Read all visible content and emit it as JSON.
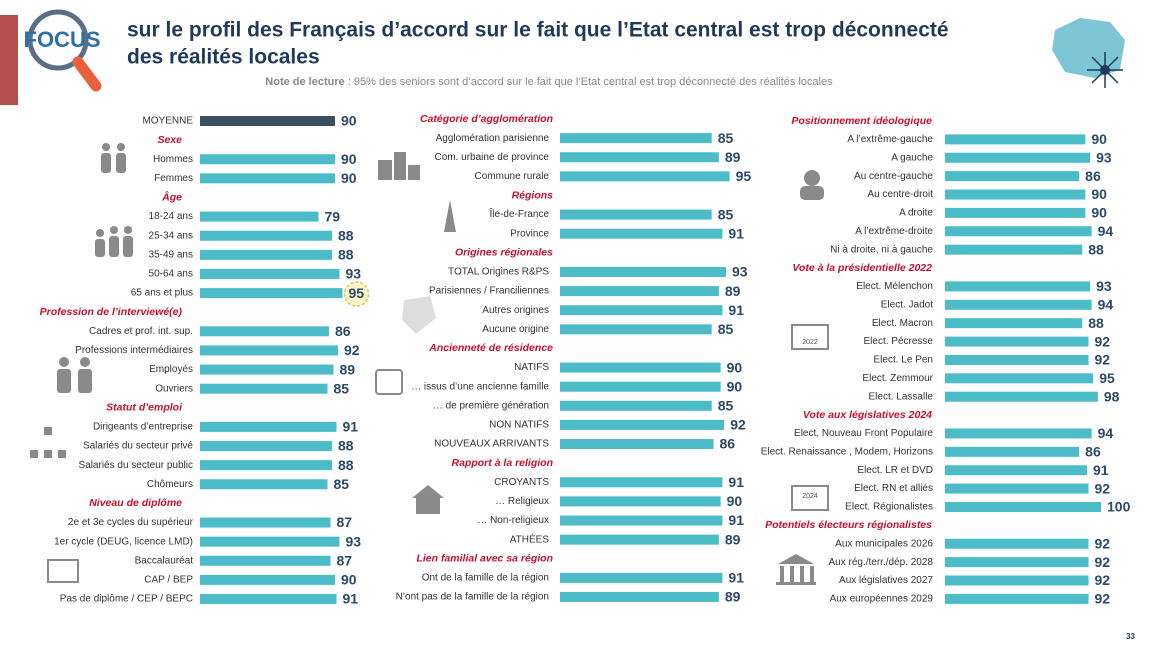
{
  "header": {
    "logo": "FOCUS",
    "title_lines": [
      "sur le profil des Français d’accord sur le fait que l’Etat central est trop déconnecté",
      "des réalités locales"
    ],
    "note": {
      "label": "Note de lecture",
      "text": ": 95% des seniors sont d’accord sur le fait que l’Etat central est trop déconnecté des réalités locales"
    }
  },
  "bar_color": "#4bbcc8",
  "columns": [
    {
      "items": [
        {
          "label": "MOYENNE",
          "value": 90,
          "color": "#3b4f63"
        },
        {
          "heading": "Sexe"
        },
        {
          "label": "Hommes",
          "value": 90
        },
        {
          "label": "Femmes",
          "value": 90
        },
        {
          "heading": "Âge"
        },
        {
          "label": "18-24 ans",
          "value": 79
        },
        {
          "label": "25-34 ans",
          "value": 88
        },
        {
          "label": "35-49 ans",
          "value": 88
        },
        {
          "label": "50-64 ans",
          "value": 93
        },
        {
          "label": "65 ans et plus",
          "value": 95,
          "highlight": true
        },
        {
          "heading": "Profession de l’interviewé(e)"
        },
        {
          "label": "Cadres et prof. int. sup.",
          "value": 86
        },
        {
          "label": "Professions intermédiaires",
          "value": 92
        },
        {
          "label": "Employés",
          "value": 89
        },
        {
          "label": "Ouvriers",
          "value": 85
        },
        {
          "heading": "Statut d’emploi"
        },
        {
          "label": "Dirigeants d’entreprise",
          "value": 91
        },
        {
          "label": "Salariés du secteur privé",
          "value": 88
        },
        {
          "label": "Salariés du secteur public",
          "value": 88
        },
        {
          "label": "Chômeurs",
          "value": 85
        },
        {
          "heading": "Niveau de diplôme"
        },
        {
          "label": "2e et 3e cycles du supérieur",
          "value": 87
        },
        {
          "label": "1er cycle (DEUG, licence LMD)",
          "value": 93
        },
        {
          "label": "Baccalauréat",
          "value": 87
        },
        {
          "label": "CAP / BEP",
          "value": 90
        },
        {
          "label": "Pas de diplôme / CEP / BEPC",
          "value": 91
        }
      ]
    },
    {
      "items": [
        {
          "heading": "Catégorie d’agglomération"
        },
        {
          "label": "Agglomération parisienne",
          "value": 85
        },
        {
          "label": "Com. urbaine de province",
          "value": 89
        },
        {
          "label": "Commune rurale",
          "value": 95
        },
        {
          "heading": "Régions"
        },
        {
          "label": "Île-de-France",
          "value": 85
        },
        {
          "label": "Province",
          "value": 91
        },
        {
          "heading": "Origines régionales"
        },
        {
          "label": "TOTAL Origines R&PS",
          "value": 93
        },
        {
          "label": "Parisiennes / Franciliennes",
          "value": 89
        },
        {
          "label": "Autres origines",
          "value": 91
        },
        {
          "label": "Aucune origine",
          "value": 85
        },
        {
          "heading": "Ancienneté de résidence"
        },
        {
          "label": "NATIFS",
          "value": 90
        },
        {
          "label": "… issus d’une ancienne famille",
          "value": 90
        },
        {
          "label": "… de première génération",
          "value": 85
        },
        {
          "label": "NON NATIFS",
          "value": 92
        },
        {
          "label": "NOUVEAUX ARRIVANTS",
          "value": 86
        },
        {
          "heading": "Rapport à la religion"
        },
        {
          "label": "CROYANTS",
          "value": 91
        },
        {
          "label": "… Religieux",
          "value": 90
        },
        {
          "label": "… Non-religieux",
          "value": 91
        },
        {
          "label": "ATHÉES",
          "value": 89
        },
        {
          "heading": "Lien familial avec sa région"
        },
        {
          "label": "Ont de la famille  de la région",
          "value": 91
        },
        {
          "label": "N’ont pas de la famille  de la région",
          "value": 89
        }
      ]
    },
    {
      "items": [
        {
          "heading": "Positionnement idéologique"
        },
        {
          "label": "A l’extrême-gauche",
          "value": 90
        },
        {
          "label": "A gauche",
          "value": 93
        },
        {
          "label": "Au centre-gauche",
          "value": 86
        },
        {
          "label": "Au centre-droit",
          "value": 90
        },
        {
          "label": "A droite",
          "value": 90
        },
        {
          "label": "A l’extrême-droite",
          "value": 94
        },
        {
          "label": "Ni à droite, ni à gauche",
          "value": 88
        },
        {
          "heading": "Vote à la présidentielle 2022"
        },
        {
          "label": "Elect. Mélenchon",
          "value": 93
        },
        {
          "label": "Elect. Jadot",
          "value": 94
        },
        {
          "label": "Elect. Macron",
          "value": 88
        },
        {
          "label": "Elect. Pécresse",
          "value": 92
        },
        {
          "label": "Elect. Le Pen",
          "value": 92
        },
        {
          "label": "Elect. Zemmour",
          "value": 95
        },
        {
          "label": "Elect. Lassalle",
          "value": 98
        },
        {
          "heading": "Vote aux législatives 2024"
        },
        {
          "label": "Elect. Nouveau Front Populaire",
          "value": 94
        },
        {
          "label": "Elect. Renaissance , Modem, Horizons",
          "value": 86
        },
        {
          "label": "Elect. LR et DVD",
          "value": 91
        },
        {
          "label": "Elect. RN et alliés",
          "value": 92
        },
        {
          "label": "Elect. Régionalistes",
          "value": 100
        },
        {
          "heading": "Potentiels électeurs régionalistes"
        },
        {
          "label": "Aux municipales 2026",
          "value": 92
        },
        {
          "label": "Aux rég./terr./dép. 2028",
          "value": 92
        },
        {
          "label": "Aux législatives 2027",
          "value": 92
        },
        {
          "label": "Aux européennes 2029",
          "value": 92
        }
      ]
    }
  ],
  "ballot_labels": [
    "2022",
    "2024"
  ],
  "page_number": "33"
}
